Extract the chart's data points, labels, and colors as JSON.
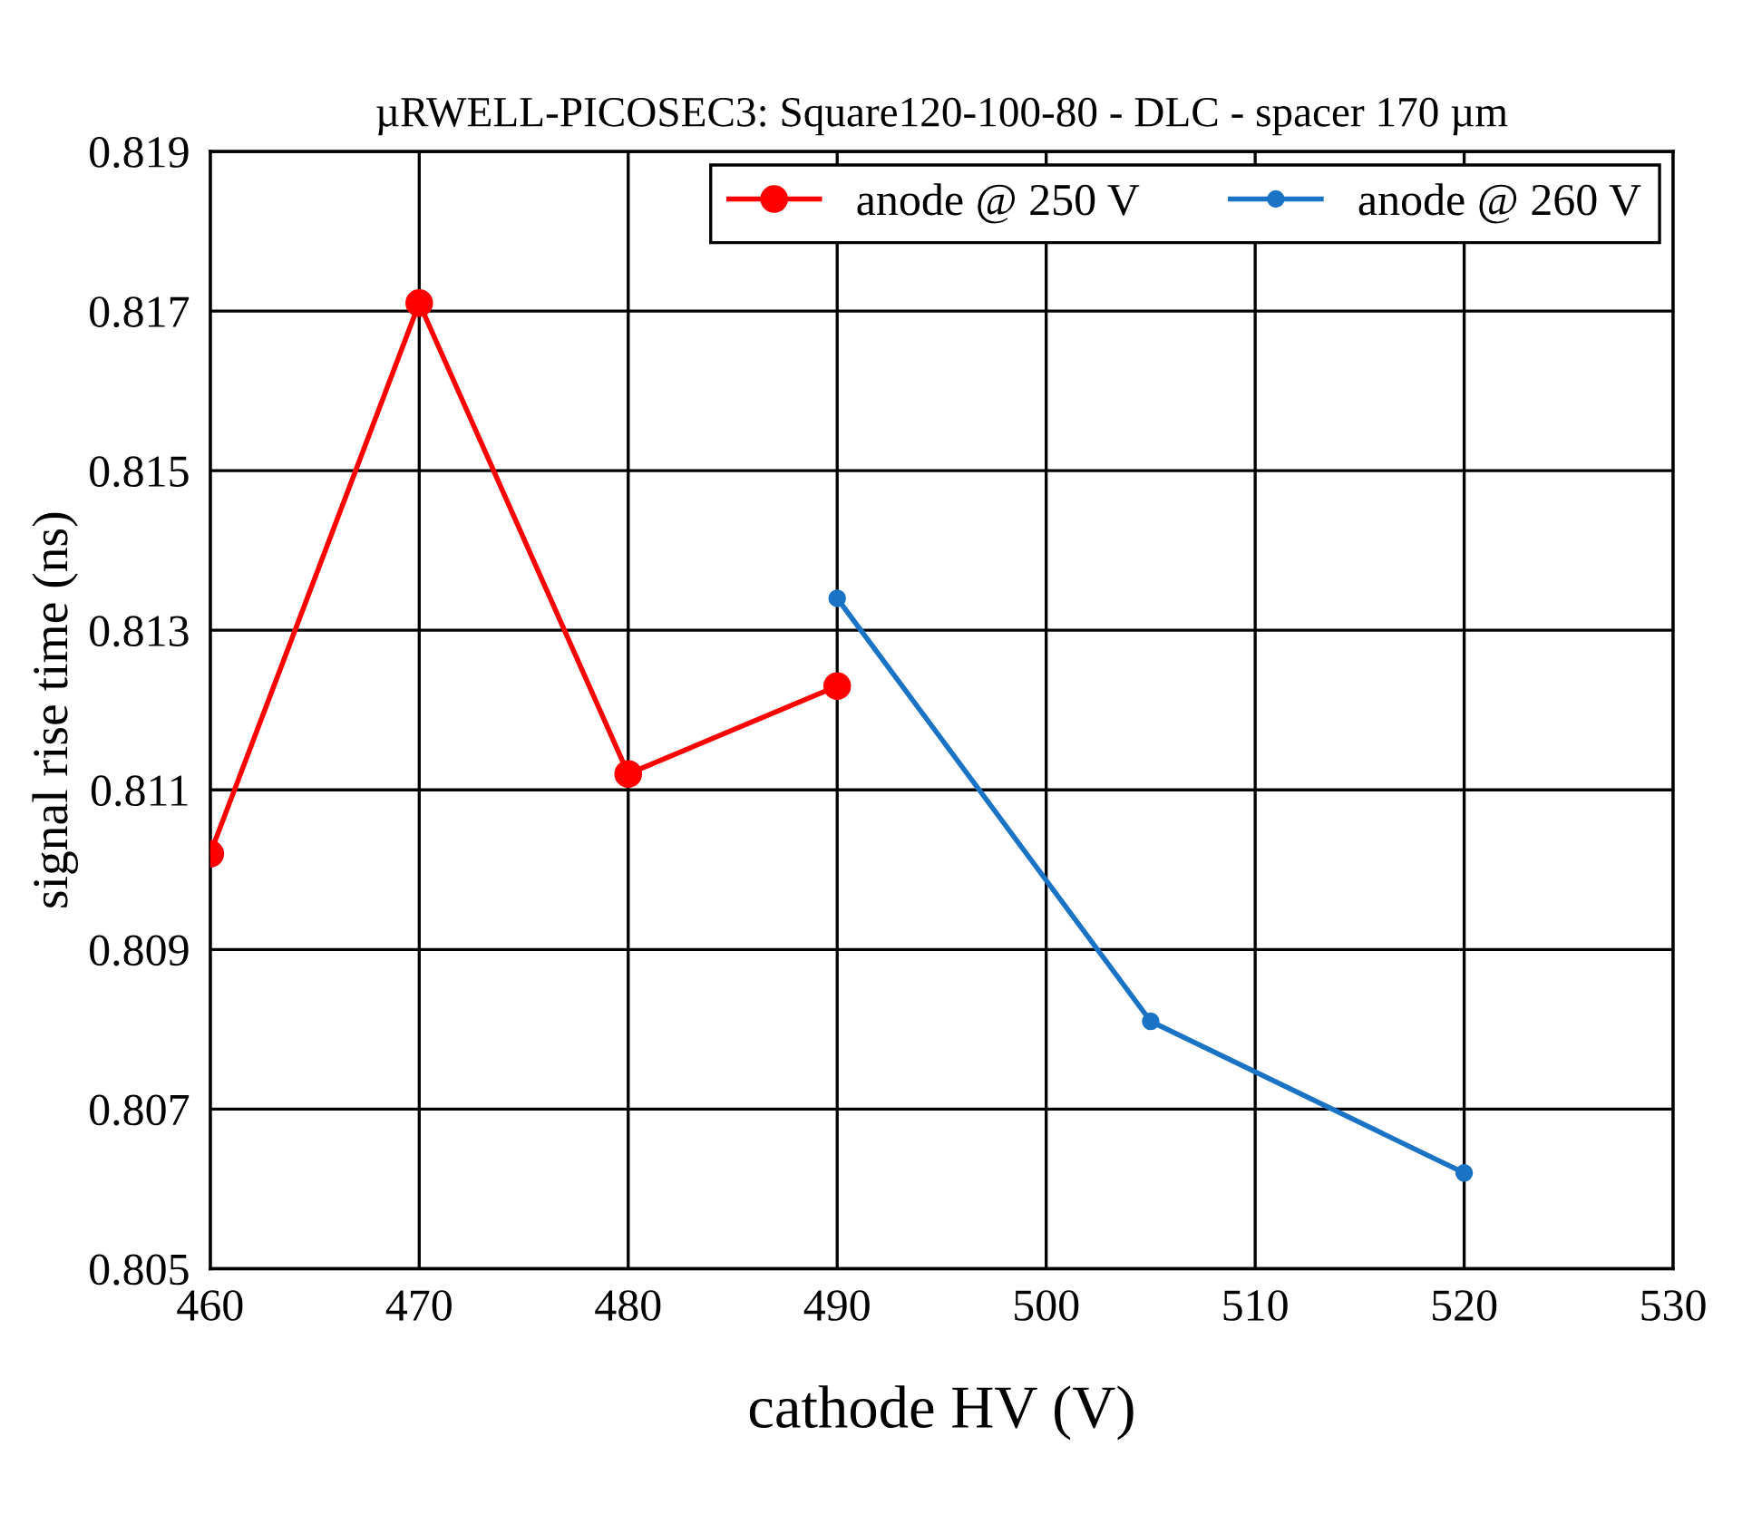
{
  "chart_data": {
    "type": "line",
    "title": "µRWELL-PICOSEC3: Square120-100-80 - DLC - spacer 170 µm",
    "xlabel": "cathode HV (V)",
    "ylabel": "signal rise time (ns)",
    "xlim": [
      460,
      530
    ],
    "xticks": [
      460,
      470,
      480,
      490,
      500,
      510,
      520,
      530
    ],
    "ylim": [
      0.805,
      0.819
    ],
    "yticks": [
      0.805,
      0.807,
      0.809,
      0.811,
      0.813,
      0.815,
      0.817,
      0.819
    ],
    "grid": true,
    "legend": "top right",
    "marker": "circle",
    "line_style": "solid",
    "series": [
      {
        "name": "anode @ 250 V",
        "color": "#ff0000",
        "x": [
          460,
          470,
          480,
          490
        ],
        "values": [
          0.8102,
          0.8171,
          0.8112,
          0.8123
        ]
      },
      {
        "name": "anode @ 260 V",
        "color": "#1a73c4",
        "x": [
          490,
          505,
          520
        ],
        "values": [
          0.8134,
          0.8081,
          0.8062
        ]
      }
    ]
  }
}
